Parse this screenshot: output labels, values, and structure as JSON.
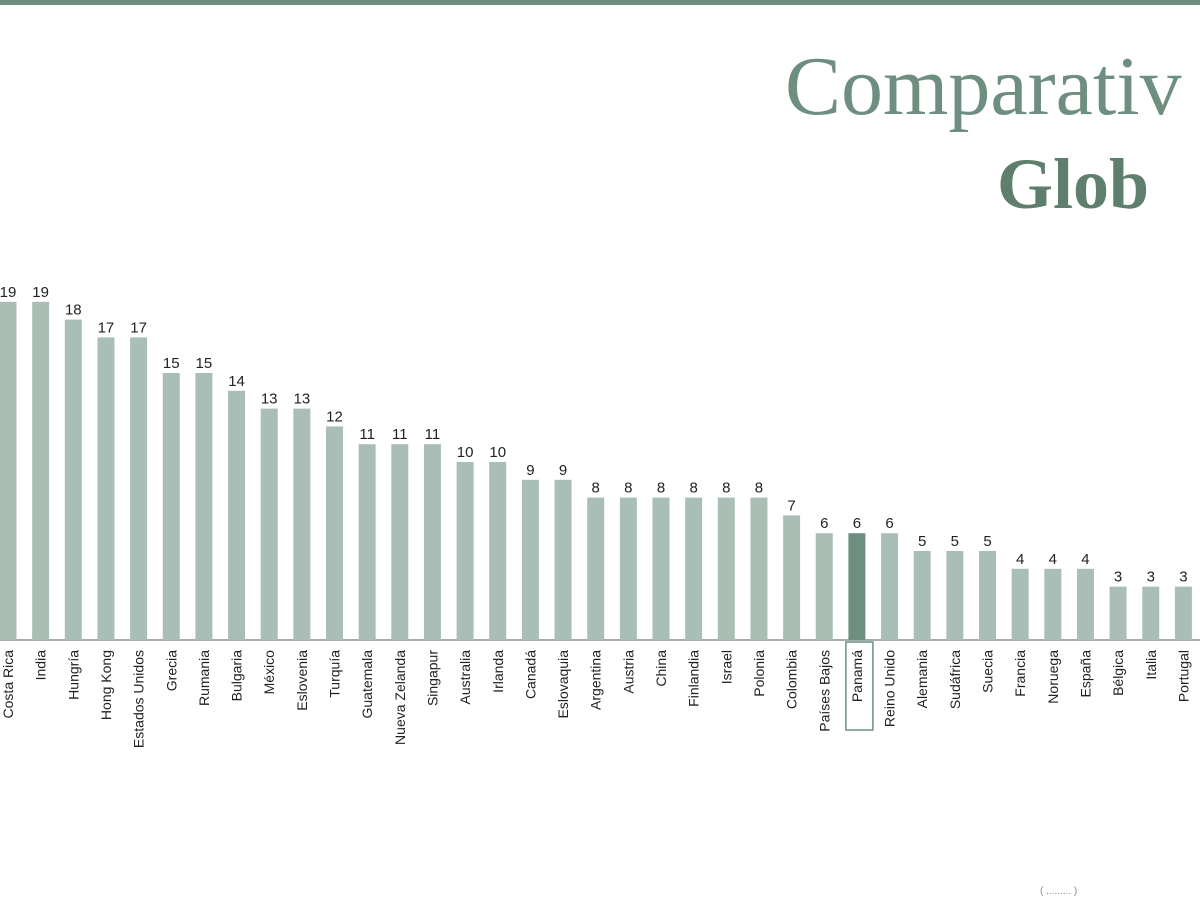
{
  "title": {
    "line1": "Comparativ",
    "line2": "Glob"
  },
  "footnote": "( ......... )",
  "colors": {
    "bar": "#a9bfb5",
    "highlight": "#6e8f80",
    "axis": "#555555",
    "text": "#222222"
  },
  "chart_data": {
    "type": "bar",
    "categories": [
      "Costa Rica",
      "India",
      "Hungría",
      "Hong Kong",
      "Estados Unidos",
      "Grecia",
      "Rumania",
      "Bulgaria",
      "México",
      "Eslovenia",
      "Turquía",
      "Guatemala",
      "Nueva Zelanda",
      "Singapur",
      "Australia",
      "Irlanda",
      "Canadá",
      "Eslovaquia",
      "Argentina",
      "Austria",
      "China",
      "Finlandia",
      "Israel",
      "Polonia",
      "Colombia",
      "Países Bajos",
      "Panamá",
      "Reino Unido",
      "Alemania",
      "Sudáfrica",
      "Suecia",
      "Francia",
      "Noruega",
      "España",
      "Bélgica",
      "Italia",
      "Portugal"
    ],
    "values": [
      19,
      19,
      18,
      17,
      17,
      15,
      15,
      14,
      13,
      13,
      12,
      11,
      11,
      11,
      10,
      10,
      9,
      9,
      8,
      8,
      8,
      8,
      8,
      8,
      7,
      6,
      6,
      6,
      5,
      5,
      5,
      4,
      4,
      4,
      3,
      3,
      3
    ],
    "highlight": "Panamá",
    "ylim": [
      0,
      19
    ]
  }
}
